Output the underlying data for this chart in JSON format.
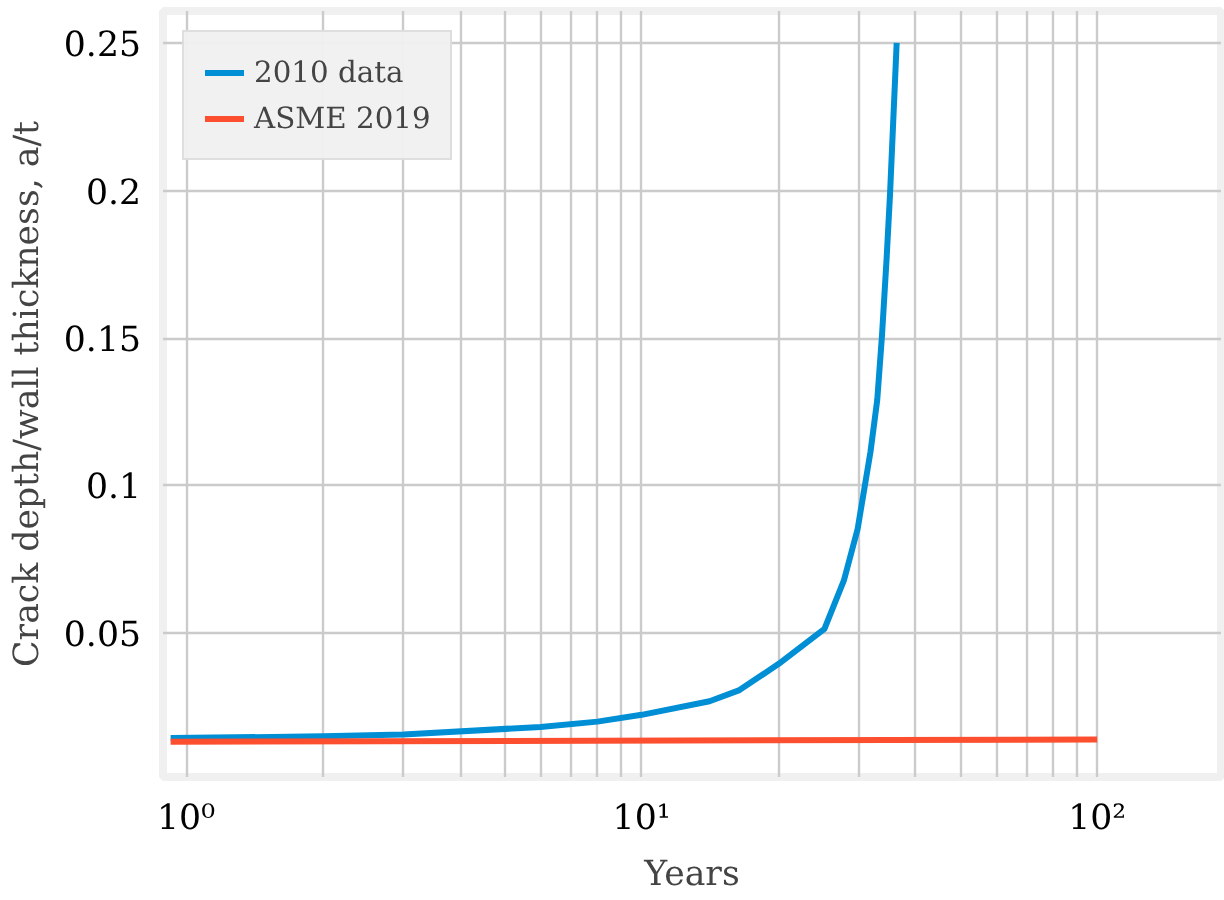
{
  "chart_data": {
    "type": "line",
    "xlabel": "Years",
    "ylabel": "Crack depth/wall thickness, a/t",
    "log": "x",
    "grid": true,
    "legend": "top left",
    "marker": "none",
    "line_style": "solid",
    "xlim": [
      0.89,
      187
    ],
    "ylim": [
      0.001,
      0.261
    ],
    "xticks": [
      {
        "value": 1,
        "label": "10⁰"
      },
      {
        "value": 2,
        "label": null
      },
      {
        "value": 3,
        "label": null
      },
      {
        "value": 4,
        "label": null
      },
      {
        "value": 5,
        "label": null
      },
      {
        "value": 6,
        "label": null
      },
      {
        "value": 7,
        "label": null
      },
      {
        "value": 8,
        "label": null
      },
      {
        "value": 9,
        "label": null
      },
      {
        "value": 10,
        "label": "10¹"
      },
      {
        "value": 20,
        "label": null
      },
      {
        "value": 30,
        "label": null
      },
      {
        "value": 40,
        "label": null
      },
      {
        "value": 50,
        "label": null
      },
      {
        "value": 60,
        "label": null
      },
      {
        "value": 70,
        "label": null
      },
      {
        "value": 80,
        "label": null
      },
      {
        "value": 90,
        "label": null
      },
      {
        "value": 100,
        "label": "10²"
      }
    ],
    "yticks": [
      0.05,
      0.1,
      0.15,
      0.2,
      0.25
    ],
    "series": [
      {
        "name": "2010 data",
        "color": "#008fd5",
        "x": [
          0.925,
          2,
          3,
          6,
          8,
          10,
          14.1,
          16.4,
          20,
          25.2,
          27.8,
          29.8,
          31.8,
          32.9,
          33.7,
          34.5,
          35.1,
          36.3
        ],
        "values": [
          0.0142,
          0.0148,
          0.0154,
          0.018,
          0.0198,
          0.0221,
          0.0267,
          0.0305,
          0.0394,
          0.0513,
          0.0677,
          0.0852,
          0.1114,
          0.1289,
          0.1508,
          0.177,
          0.1988,
          0.2502
        ]
      },
      {
        "name": "ASME 2019",
        "color": "#fc4f30",
        "x": [
          0.925,
          100
        ],
        "values": [
          0.013,
          0.0137
        ]
      }
    ]
  }
}
